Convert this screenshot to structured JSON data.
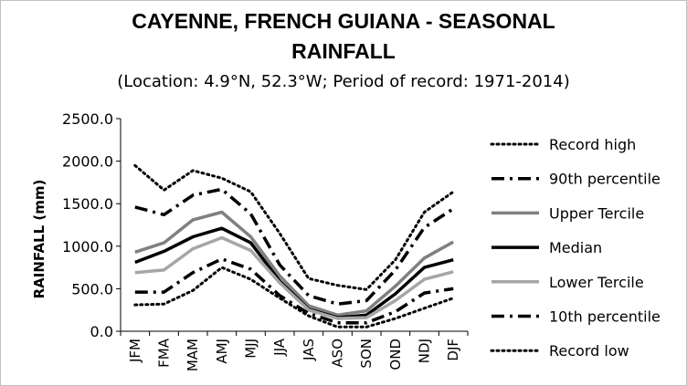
{
  "chart_data": {
    "type": "line",
    "title_line1": "CAYENNE, FRENCH GUIANA - SEASONAL",
    "title_line2": "RAINFALL",
    "subtitle": "(Location: 4.9°N, 52.3°W; Period of record: 1971-2014)",
    "ylabel": "RAINFALL (mm)",
    "xlabel": "",
    "ylim": [
      0,
      2500
    ],
    "yticks": [
      "0.0",
      "500.0",
      "1000.0",
      "1500.0",
      "2000.0",
      "2500.0"
    ],
    "categories": [
      "JFM",
      "FMA",
      "MAM",
      "AMJ",
      "MJJ",
      "JJA",
      "JAS",
      "ASO",
      "SON",
      "OND",
      "NDJ",
      "DJF"
    ],
    "legend_position": "right",
    "grid": false,
    "series": [
      {
        "name": "Record high",
        "style": "dotted",
        "color": "#000000",
        "values": [
          1950,
          1660,
          1890,
          1800,
          1640,
          1150,
          620,
          540,
          490,
          840,
          1400,
          1640
        ]
      },
      {
        "name": "90th percentile",
        "style": "dashdot",
        "color": "#000000",
        "values": [
          1460,
          1370,
          1600,
          1670,
          1380,
          780,
          420,
          320,
          360,
          720,
          1220,
          1440
        ]
      },
      {
        "name": "Upper Tercile",
        "style": "solid",
        "color": "#808080",
        "values": [
          930,
          1040,
          1310,
          1400,
          1110,
          650,
          300,
          190,
          240,
          530,
          860,
          1050
        ]
      },
      {
        "name": "Median",
        "style": "solid",
        "color": "#000000",
        "values": [
          810,
          940,
          1110,
          1210,
          1040,
          590,
          260,
          160,
          190,
          440,
          750,
          840
        ]
      },
      {
        "name": "Lower Tercile",
        "style": "solid",
        "color": "#a6a6a6",
        "values": [
          690,
          720,
          970,
          1100,
          950,
          570,
          250,
          150,
          160,
          360,
          610,
          700
        ]
      },
      {
        "name": "10th percentile",
        "style": "dashdot",
        "color": "#000000",
        "values": [
          460,
          460,
          690,
          850,
          730,
          420,
          210,
          100,
          100,
          230,
          450,
          500
        ]
      },
      {
        "name": "Record low",
        "style": "dotted",
        "color": "#000000",
        "values": [
          310,
          320,
          480,
          750,
          610,
          390,
          180,
          50,
          50,
          150,
          270,
          390
        ]
      }
    ]
  }
}
